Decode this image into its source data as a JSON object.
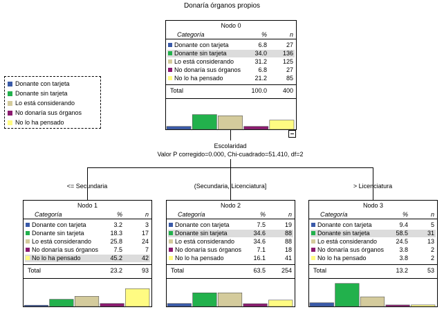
{
  "title": "Donaría órganos propios",
  "colors": {
    "Donante con tarjeta": "#3a5aa8",
    "Donante sin tarjeta": "#22b14c",
    "Lo está considerando": "#d4cb9c",
    "No donaría sus órganos": "#8b1a6f",
    "No lo ha pensado": "#fffb82"
  },
  "legend": [
    "Donante con tarjeta",
    "Donante sin tarjeta",
    "Lo está considerando",
    "No donaría sus órganos",
    "No lo ha pensado"
  ],
  "split": {
    "variable": "Escolaridad",
    "stats": "Valor P corregido=0.000, Chi-cuadrado=51.410, df=2",
    "branches": [
      "<= Secundaria",
      "(Secundaria, Licenciatura]",
      "> Licenciatura"
    ]
  },
  "columns": {
    "category": "Categoría",
    "pct": "%",
    "n": "n"
  },
  "total_label": "Total",
  "nodes": [
    {
      "title": "Nodo 0",
      "rows": [
        {
          "cat": "Donante con tarjeta",
          "pct": "6.8",
          "n": "27"
        },
        {
          "cat": "Donante sin tarjeta",
          "pct": "34.0",
          "n": "136"
        },
        {
          "cat": "Lo está considerando",
          "pct": "31.2",
          "n": "125"
        },
        {
          "cat": "No donaría sus órganos",
          "pct": "6.8",
          "n": "27"
        },
        {
          "cat": "No lo ha pensado",
          "pct": "21.2",
          "n": "85"
        }
      ],
      "highlight": 1,
      "total": {
        "pct": "100.0",
        "n": "400"
      }
    },
    {
      "title": "Nodo 1",
      "rows": [
        {
          "cat": "Donante con tarjeta",
          "pct": "3.2",
          "n": "3"
        },
        {
          "cat": "Donante sin tarjeta",
          "pct": "18.3",
          "n": "17"
        },
        {
          "cat": "Lo está considerando",
          "pct": "25.8",
          "n": "24"
        },
        {
          "cat": "No donaría sus órganos",
          "pct": "7.5",
          "n": "7"
        },
        {
          "cat": "No lo ha pensado",
          "pct": "45.2",
          "n": "42"
        }
      ],
      "highlight": 4,
      "total": {
        "pct": "23.2",
        "n": "93"
      }
    },
    {
      "title": "Nodo 2",
      "rows": [
        {
          "cat": "Donante con tarjeta",
          "pct": "7.5",
          "n": "19"
        },
        {
          "cat": "Donante sin tarjeta",
          "pct": "34.6",
          "n": "88"
        },
        {
          "cat": "Lo está considerando",
          "pct": "34.6",
          "n": "88"
        },
        {
          "cat": "No donaría sus órganos",
          "pct": "7.1",
          "n": "18"
        },
        {
          "cat": "No lo ha pensado",
          "pct": "16.1",
          "n": "41"
        }
      ],
      "highlight": 1,
      "total": {
        "pct": "63.5",
        "n": "254"
      }
    },
    {
      "title": "Nodo 3",
      "rows": [
        {
          "cat": "Donante con tarjeta",
          "pct": "9.4",
          "n": "5"
        },
        {
          "cat": "Donante sin tarjeta",
          "pct": "58.5",
          "n": "31"
        },
        {
          "cat": "Lo está considerando",
          "pct": "24.5",
          "n": "13"
        },
        {
          "cat": "No donaría sus órganos",
          "pct": "3.8",
          "n": "2"
        },
        {
          "cat": "No lo ha pensado",
          "pct": "3.8",
          "n": "2"
        }
      ],
      "highlight": 1,
      "total": {
        "pct": "13.2",
        "n": "53"
      }
    }
  ]
}
